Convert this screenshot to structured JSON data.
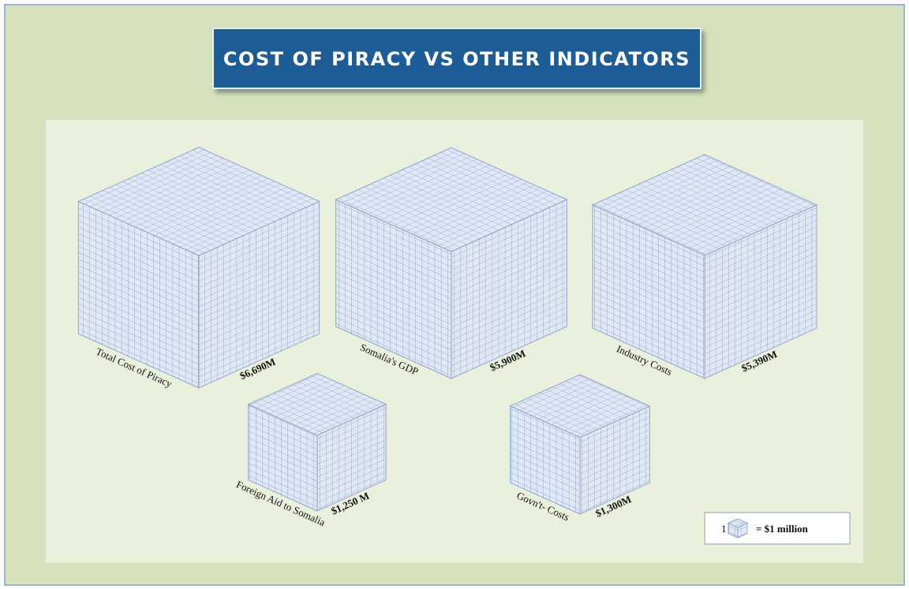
{
  "chart_data": {
    "type": "isometric-cubes",
    "title": "COST OF PIRACY VS OTHER INDICATORS",
    "categories": [
      "Total Cost of Piracy",
      "Somalia's GDP",
      "Industry Costs",
      "Foreign Aid to Somalia",
      "Govn't- Costs"
    ],
    "values": [
      6690,
      5900,
      5390,
      1250,
      1300
    ],
    "value_labels": [
      "$6,690M",
      "$5,900M",
      "$5,390M",
      "$1,250 M",
      "$1,300M"
    ],
    "color": "#dfe8f4",
    "legend": {
      "count": 1,
      "label": "= $1 million"
    }
  }
}
